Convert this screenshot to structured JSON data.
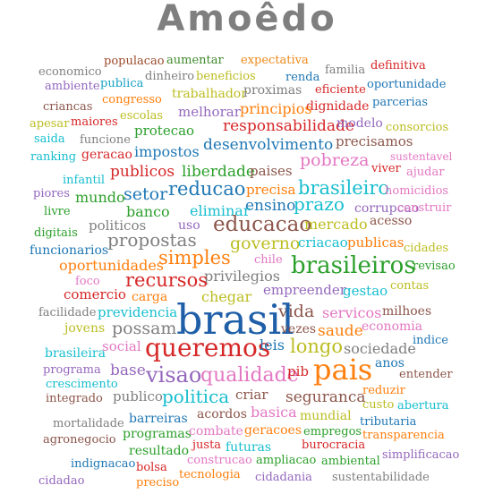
{
  "title": "Amoêdo",
  "words": [
    {
      "text": "populacao",
      "color": "#9b4a2c"
    },
    {
      "text": "aumentar",
      "color": "#3f8b2c"
    },
    {
      "text": "expectativa",
      "color": "#ee8a1c"
    },
    {
      "text": "economico",
      "color": "#7f7f7f"
    },
    {
      "text": "dinheiro",
      "color": "#7f7f7f"
    },
    {
      "text": "familia",
      "color": "#7f7f7f"
    },
    {
      "text": "definitiva",
      "color": "#d62728"
    },
    {
      "text": "publica",
      "color": "#17a2c8"
    },
    {
      "text": "beneficios",
      "color": "#bcbd22"
    },
    {
      "text": "renda",
      "color": "#1f77b4"
    },
    {
      "text": "ambiente",
      "color": "#9467bd"
    },
    {
      "text": "eficiente",
      "color": "#d62728"
    },
    {
      "text": "oportunidade",
      "color": "#1f77b4"
    },
    {
      "text": "congresso",
      "color": "#ff7f0e"
    },
    {
      "text": "trabalhador",
      "color": "#bcbd22"
    },
    {
      "text": "proximas",
      "color": "#7f7f7f"
    },
    {
      "text": "dignidade",
      "color": "#d62728"
    },
    {
      "text": "parcerias",
      "color": "#1f77b4"
    },
    {
      "text": "criancas",
      "color": "#8c564b"
    },
    {
      "text": "principios",
      "color": "#ff7f0e"
    },
    {
      "text": "escolas",
      "color": "#bcbd22"
    },
    {
      "text": "melhorar",
      "color": "#9467bd"
    },
    {
      "text": "apesar",
      "color": "#bcbd22"
    },
    {
      "text": "maiores",
      "color": "#d62728"
    },
    {
      "text": "responsabilidade",
      "color": "#d62728"
    },
    {
      "text": "modelo",
      "color": "#9467bd"
    },
    {
      "text": "consorcios",
      "color": "#bcbd22"
    },
    {
      "text": "saida",
      "color": "#17becf"
    },
    {
      "text": "funcione",
      "color": "#7f7f7f"
    },
    {
      "text": "protecao",
      "color": "#2ca02c"
    },
    {
      "text": "precisamos",
      "color": "#8c564b"
    },
    {
      "text": "desenvolvimento",
      "color": "#1f77b4"
    },
    {
      "text": "ranking",
      "color": "#17becf"
    },
    {
      "text": "geracao",
      "color": "#d62728"
    },
    {
      "text": "impostos",
      "color": "#1f77b4"
    },
    {
      "text": "sustentavel",
      "color": "#e377c2"
    },
    {
      "text": "pobreza",
      "color": "#e377c2"
    },
    {
      "text": "viver",
      "color": "#d62728"
    },
    {
      "text": "publicos",
      "color": "#d62728"
    },
    {
      "text": "liberdade",
      "color": "#2ca02c"
    },
    {
      "text": "paises",
      "color": "#8c564b"
    },
    {
      "text": "ajudar",
      "color": "#e377c2"
    },
    {
      "text": "infantil",
      "color": "#17becf"
    },
    {
      "text": "brasileiro",
      "color": "#17becf"
    },
    {
      "text": "piores",
      "color": "#9467bd"
    },
    {
      "text": "setor",
      "color": "#1f77b4"
    },
    {
      "text": "reducao",
      "color": "#1f77b4"
    },
    {
      "text": "precisa",
      "color": "#ff7f0e"
    },
    {
      "text": "homicidios",
      "color": "#e377c2"
    },
    {
      "text": "mundo",
      "color": "#2ca02c"
    },
    {
      "text": "ensino",
      "color": "#1f77b4"
    },
    {
      "text": "prazo",
      "color": "#17becf"
    },
    {
      "text": "corrupcao",
      "color": "#9467bd"
    },
    {
      "text": "construir",
      "color": "#e377c2"
    },
    {
      "text": "livre",
      "color": "#2ca02c"
    },
    {
      "text": "banco",
      "color": "#2ca02c"
    },
    {
      "text": "eliminar",
      "color": "#17becf"
    },
    {
      "text": "politicos",
      "color": "#7f7f7f"
    },
    {
      "text": "uso",
      "color": "#9467bd"
    },
    {
      "text": "educacao",
      "color": "#8c564b"
    },
    {
      "text": "mercado",
      "color": "#bcbd22"
    },
    {
      "text": "acesso",
      "color": "#8c564b"
    },
    {
      "text": "digitais",
      "color": "#2ca02c"
    },
    {
      "text": "propostas",
      "color": "#7f7f7f"
    },
    {
      "text": "governo",
      "color": "#bcbd22"
    },
    {
      "text": "criacao",
      "color": "#17becf"
    },
    {
      "text": "publicas",
      "color": "#ff7f0e"
    },
    {
      "text": "cidades",
      "color": "#bcbd22"
    },
    {
      "text": "funcionarios",
      "color": "#1f77b4"
    },
    {
      "text": "simples",
      "color": "#ff7f0e"
    },
    {
      "text": "chile",
      "color": "#e377c2"
    },
    {
      "text": "oportunidades",
      "color": "#ff7f0e"
    },
    {
      "text": "brasileiros",
      "color": "#2ca02c"
    },
    {
      "text": "revisao",
      "color": "#2ca02c"
    },
    {
      "text": "privilegios",
      "color": "#7f7f7f"
    },
    {
      "text": "foco",
      "color": "#e377c2"
    },
    {
      "text": "recursos",
      "color": "#d62728"
    },
    {
      "text": "empreender",
      "color": "#9467bd"
    },
    {
      "text": "contas",
      "color": "#bcbd22"
    },
    {
      "text": "gestao",
      "color": "#17becf"
    },
    {
      "text": "comercio",
      "color": "#d62728"
    },
    {
      "text": "carga",
      "color": "#ff7f0e"
    },
    {
      "text": "chegar",
      "color": "#bcbd22"
    },
    {
      "text": "facilidade",
      "color": "#7f7f7f"
    },
    {
      "text": "previdencia",
      "color": "#17becf"
    },
    {
      "text": "vida",
      "color": "#8c564b"
    },
    {
      "text": "servicos",
      "color": "#e377c2"
    },
    {
      "text": "milhoes",
      "color": "#8c564b"
    },
    {
      "text": "brasil",
      "color": "#1f5fa8"
    },
    {
      "text": "jovens",
      "color": "#bcbd22"
    },
    {
      "text": "possam",
      "color": "#7f7f7f"
    },
    {
      "text": "vezes",
      "color": "#8c564b"
    },
    {
      "text": "saude",
      "color": "#ff7f0e"
    },
    {
      "text": "economia",
      "color": "#e377c2"
    },
    {
      "text": "social",
      "color": "#e377c2"
    },
    {
      "text": "queremos",
      "color": "#d62728"
    },
    {
      "text": "leis",
      "color": "#1f77b4"
    },
    {
      "text": "longo",
      "color": "#bcbd22"
    },
    {
      "text": "sociedade",
      "color": "#7f7f7f"
    },
    {
      "text": "indice",
      "color": "#1f77b4"
    },
    {
      "text": "brasileira",
      "color": "#17becf"
    },
    {
      "text": "anos",
      "color": "#1f77b4"
    },
    {
      "text": "programa",
      "color": "#9467bd"
    },
    {
      "text": "base",
      "color": "#9467bd"
    },
    {
      "text": "visao",
      "color": "#9467bd"
    },
    {
      "text": "qualidade",
      "color": "#e377c2"
    },
    {
      "text": "pib",
      "color": "#d62728"
    },
    {
      "text": "pais",
      "color": "#ff7f0e"
    },
    {
      "text": "entender",
      "color": "#8c564b"
    },
    {
      "text": "crescimento",
      "color": "#17becf"
    },
    {
      "text": "reduzir",
      "color": "#ff7f0e"
    },
    {
      "text": "integrado",
      "color": "#8c564b"
    },
    {
      "text": "publico",
      "color": "#7f7f7f"
    },
    {
      "text": "politica",
      "color": "#17becf"
    },
    {
      "text": "criar",
      "color": "#8c564b"
    },
    {
      "text": "seguranca",
      "color": "#8c564b"
    },
    {
      "text": "custo",
      "color": "#bcbd22"
    },
    {
      "text": "abertura",
      "color": "#17becf"
    },
    {
      "text": "acordos",
      "color": "#8c564b"
    },
    {
      "text": "basica",
      "color": "#e377c2"
    },
    {
      "text": "mundial",
      "color": "#bcbd22"
    },
    {
      "text": "mortalidade",
      "color": "#7f7f7f"
    },
    {
      "text": "barreiras",
      "color": "#1f77b4"
    },
    {
      "text": "tributaria",
      "color": "#1f77b4"
    },
    {
      "text": "programas",
      "color": "#2ca02c"
    },
    {
      "text": "combate",
      "color": "#e377c2"
    },
    {
      "text": "geracoes",
      "color": "#ff7f0e"
    },
    {
      "text": "empregos",
      "color": "#2ca02c"
    },
    {
      "text": "agronegocio",
      "color": "#8c564b"
    },
    {
      "text": "transparencia",
      "color": "#ff7f0e"
    },
    {
      "text": "justa",
      "color": "#d62728"
    },
    {
      "text": "futuras",
      "color": "#17becf"
    },
    {
      "text": "burocracia",
      "color": "#d62728"
    },
    {
      "text": "resultado",
      "color": "#2ca02c"
    },
    {
      "text": "simplificacao",
      "color": "#9467bd"
    },
    {
      "text": "construcao",
      "color": "#e377c2"
    },
    {
      "text": "ampliacao",
      "color": "#2ca02c"
    },
    {
      "text": "ambiental",
      "color": "#2ca02c"
    },
    {
      "text": "indignacao",
      "color": "#1f77b4"
    },
    {
      "text": "bolsa",
      "color": "#d62728"
    },
    {
      "text": "tecnologia",
      "color": "#ff7f0e"
    },
    {
      "text": "cidadania",
      "color": "#9467bd"
    },
    {
      "text": "sustentabilidade",
      "color": "#7f7f7f"
    },
    {
      "text": "cidadao",
      "color": "#9467bd"
    },
    {
      "text": "preciso",
      "color": "#ff7f0e"
    }
  ]
}
